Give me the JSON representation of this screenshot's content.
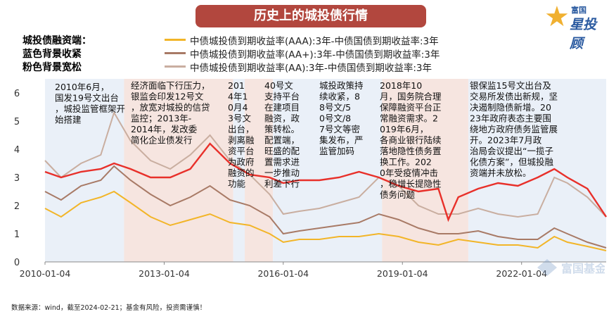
{
  "title": "历史上的城投债行情",
  "logo": {
    "small": "富国",
    "big": "星投顾",
    "icon": "star-icon"
  },
  "left_legend": [
    {
      "text": "城投债融资端：",
      "color": "#555555"
    },
    {
      "text": "蓝色背景收紧",
      "color": "#5a7db0"
    },
    {
      "text": "粉色背景宽松",
      "color": "#b58a78"
    }
  ],
  "watermark": "富国基金",
  "source": "数据来源：wind，截至2024-02-21；基金有风险，投资需谨慎！",
  "chart_data": {
    "type": "line",
    "x_ticks": [
      "2010-01-04",
      "2013-01-04",
      "2016-01-04",
      "2019-01-04",
      "2022-01-04"
    ],
    "x_range": [
      "2010-01-04",
      "2024-02-21"
    ],
    "ylim": [
      0,
      6.5
    ],
    "y_ticks": [
      0,
      1,
      2,
      3,
      4,
      5,
      6
    ],
    "series": [
      {
        "name": "中债城投债到期收益率(AAA):3年-中债国债到期收益率:3年",
        "color": "#f2b528",
        "points": [
          [
            "2010-01-04",
            1.9
          ],
          [
            "2010-06-01",
            1.6
          ],
          [
            "2010-12-01",
            2.1
          ],
          [
            "2011-06-01",
            2.3
          ],
          [
            "2011-10-01",
            2.5
          ],
          [
            "2012-03-01",
            2.1
          ],
          [
            "2012-09-01",
            1.6
          ],
          [
            "2013-03-01",
            1.3
          ],
          [
            "2013-09-01",
            1.5
          ],
          [
            "2014-03-01",
            1.7
          ],
          [
            "2014-09-01",
            1.4
          ],
          [
            "2015-03-01",
            1.3
          ],
          [
            "2015-09-01",
            1.0
          ],
          [
            "2016-01-04",
            0.7
          ],
          [
            "2016-06-01",
            0.8
          ],
          [
            "2016-12-01",
            0.8
          ],
          [
            "2017-06-01",
            0.9
          ],
          [
            "2017-12-01",
            0.9
          ],
          [
            "2018-06-01",
            1.0
          ],
          [
            "2018-12-01",
            0.9
          ],
          [
            "2019-06-01",
            0.7
          ],
          [
            "2019-12-01",
            0.6
          ],
          [
            "2020-06-01",
            0.8
          ],
          [
            "2020-12-01",
            0.7
          ],
          [
            "2021-06-01",
            0.6
          ],
          [
            "2021-12-01",
            0.6
          ],
          [
            "2022-06-01",
            0.5
          ],
          [
            "2022-11-01",
            0.9
          ],
          [
            "2023-03-01",
            0.7
          ],
          [
            "2023-09-01",
            0.55
          ],
          [
            "2024-02-21",
            0.4
          ]
        ]
      },
      {
        "name": "中债城投债到期收益率(AA+):3年-中债国债到期收益率:3年",
        "color": "#a87a66",
        "points": [
          [
            "2010-01-04",
            2.5
          ],
          [
            "2010-06-01",
            2.2
          ],
          [
            "2010-12-01",
            2.7
          ],
          [
            "2011-06-01",
            2.9
          ],
          [
            "2011-10-01",
            3.4
          ],
          [
            "2012-03-01",
            2.9
          ],
          [
            "2012-09-01",
            2.4
          ],
          [
            "2013-03-01",
            2.0
          ],
          [
            "2013-09-01",
            2.3
          ],
          [
            "2014-03-01",
            2.7
          ],
          [
            "2014-09-01",
            2.2
          ],
          [
            "2015-03-01",
            2.0
          ],
          [
            "2015-09-01",
            1.6
          ],
          [
            "2016-01-04",
            1.0
          ],
          [
            "2016-06-01",
            1.1
          ],
          [
            "2016-12-01",
            1.2
          ],
          [
            "2017-06-01",
            1.3
          ],
          [
            "2017-12-01",
            1.4
          ],
          [
            "2018-06-01",
            1.7
          ],
          [
            "2018-12-01",
            1.5
          ],
          [
            "2019-06-01",
            1.2
          ],
          [
            "2019-12-01",
            1.0
          ],
          [
            "2020-06-01",
            1.0
          ],
          [
            "2020-12-01",
            1.1
          ],
          [
            "2021-06-01",
            0.9
          ],
          [
            "2021-12-01",
            0.8
          ],
          [
            "2022-06-01",
            0.8
          ],
          [
            "2022-11-01",
            1.2
          ],
          [
            "2023-03-01",
            1.0
          ],
          [
            "2023-09-01",
            0.7
          ],
          [
            "2024-02-21",
            0.5
          ]
        ]
      },
      {
        "name": "中债城投债到期收益率(AA):3年-中债国债到期收益率:3年",
        "color": "#c9aea0",
        "points": [
          [
            "2010-01-04",
            3.6
          ],
          [
            "2010-06-01",
            3.0
          ],
          [
            "2010-12-01",
            3.5
          ],
          [
            "2011-06-01",
            3.8
          ],
          [
            "2011-10-01",
            5.3
          ],
          [
            "2012-03-01",
            4.3
          ],
          [
            "2012-09-01",
            3.6
          ],
          [
            "2013-03-01",
            3.3
          ],
          [
            "2013-09-01",
            3.8
          ],
          [
            "2014-03-01",
            4.5
          ],
          [
            "2014-09-01",
            3.6
          ],
          [
            "2015-03-01",
            3.1
          ],
          [
            "2015-09-01",
            2.4
          ],
          [
            "2016-01-04",
            1.7
          ],
          [
            "2016-06-01",
            1.8
          ],
          [
            "2016-12-01",
            1.9
          ],
          [
            "2017-06-01",
            2.1
          ],
          [
            "2017-12-01",
            2.3
          ],
          [
            "2018-06-01",
            3.0
          ],
          [
            "2018-12-01",
            2.7
          ],
          [
            "2019-06-01",
            2.0
          ],
          [
            "2019-12-01",
            1.7
          ],
          [
            "2020-06-01",
            1.7
          ],
          [
            "2020-12-01",
            1.9
          ],
          [
            "2021-06-01",
            1.7
          ],
          [
            "2021-12-01",
            1.6
          ],
          [
            "2022-06-01",
            1.7
          ],
          [
            "2022-11-01",
            3.0
          ],
          [
            "2023-03-01",
            2.8
          ],
          [
            "2023-09-01",
            2.3
          ],
          [
            "2024-02-21",
            1.6
          ]
        ]
      },
      {
        "name": "",
        "color": "#e8302a",
        "points": [
          [
            "2010-01-04",
            3.2
          ],
          [
            "2010-06-01",
            3.0
          ],
          [
            "2010-12-01",
            3.2
          ],
          [
            "2011-06-01",
            3.3
          ],
          [
            "2011-10-01",
            3.5
          ],
          [
            "2012-03-01",
            3.3
          ],
          [
            "2012-09-01",
            3.0
          ],
          [
            "2013-03-01",
            3.0
          ],
          [
            "2013-09-01",
            3.3
          ],
          [
            "2014-03-01",
            4.2
          ],
          [
            "2014-09-01",
            3.5
          ],
          [
            "2015-03-01",
            3.1
          ],
          [
            "2015-09-01",
            3.0
          ],
          [
            "2016-01-04",
            2.8
          ],
          [
            "2016-06-01",
            2.9
          ],
          [
            "2016-12-01",
            2.9
          ],
          [
            "2017-06-01",
            3.0
          ],
          [
            "2017-12-01",
            3.2
          ],
          [
            "2018-06-01",
            3.0
          ],
          [
            "2018-12-01",
            2.7
          ],
          [
            "2019-06-01",
            2.5
          ],
          [
            "2019-12-01",
            2.6
          ],
          [
            "2020-03-01",
            1.5
          ],
          [
            "2020-06-01",
            2.3
          ],
          [
            "2020-12-01",
            2.6
          ],
          [
            "2021-06-01",
            2.8
          ],
          [
            "2021-12-01",
            2.7
          ],
          [
            "2022-06-01",
            3.0
          ],
          [
            "2022-11-01",
            3.3
          ],
          [
            "2023-03-01",
            3.0
          ],
          [
            "2023-09-01",
            2.6
          ],
          [
            "2024-02-21",
            1.6
          ]
        ]
      }
    ],
    "regions": [
      {
        "start": "2010-01-04",
        "end": "2012-01-01",
        "fill": "#eaf0f8"
      },
      {
        "start": "2012-01-01",
        "end": "2014-10-01",
        "fill": "#f6e5e0"
      },
      {
        "start": "2014-10-01",
        "end": "2015-01-15",
        "fill": "#eaf0f8"
      },
      {
        "start": "2015-01-15",
        "end": "2015-10-01",
        "fill": "#f6e5e0"
      },
      {
        "start": "2015-10-01",
        "end": "2018-07-01",
        "fill": "#eaf0f8"
      },
      {
        "start": "2018-07-01",
        "end": "2020-09-01",
        "fill": "#f6e5e0"
      },
      {
        "start": "2020-09-01",
        "end": "2024-02-21",
        "fill": "#eaf0f8"
      }
    ],
    "annotations": [
      "2010年6月，国发19号文出台，城投监管框架开始搭建",
      "经济面临下行压力，银监会印发12号文，放宽对城投的信贷监控；2013年-2014年，发改委简化企业债发行",
      "2014年10月43号文出台，剥离融资平台为政府融资的功能",
      "40号文支持平台在建项目融资，政策转松。配置端，旺盛的配置需求进一步推动利差下行",
      "城投政策持续收紧，88号文/50号文/87号文等密集发布，严监管加码",
      "2018年10月，国务院合理保障融资平台正常融资需求。2019年6月，各商业银行陆续落地隐性债务置换工作。2020年受疫情冲击，稳增长提隐性债务问题",
      "银保监15号文出台及交易所发债出新规，坚决遏制隐债新增。2023年政府表态主要围绕地方政府债务监管展开。2023年7月政治局会议提出“一揽子化债方案”，但城投融资端并未放松。"
    ]
  }
}
